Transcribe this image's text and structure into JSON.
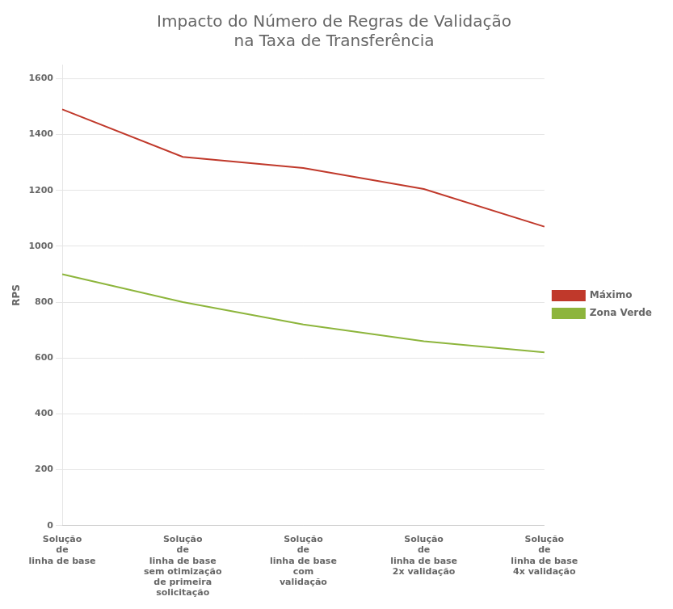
{
  "chart_data": {
    "type": "line",
    "title": "Impacto do Número de Regras de Validação\nna Taxa de Transferência",
    "ylabel": "RPS",
    "categories": [
      "Solução\nde\nlinha de base",
      "Solução\nde\nlinha de base\nsem otimização\nde primeira\nsolicitação",
      "Solução\nde\nlinha de base\ncom\nvalidação",
      "Solução\nde\nlinha de base\n2x validação",
      "Solução\nde\nlinha de base\n4x validação"
    ],
    "series": [
      {
        "name": "Máximo",
        "color": "#c0392b",
        "values": [
          1490,
          1320,
          1280,
          1205,
          1070
        ]
      },
      {
        "name": "Zona Verde",
        "color": "#8db53c",
        "values": [
          900,
          800,
          720,
          660,
          620
        ]
      }
    ],
    "ylim": [
      0,
      1650
    ],
    "yticks": [
      0,
      200,
      400,
      600,
      800,
      1000,
      1200,
      1400,
      1600
    ],
    "grid": "y",
    "legend": "right"
  }
}
